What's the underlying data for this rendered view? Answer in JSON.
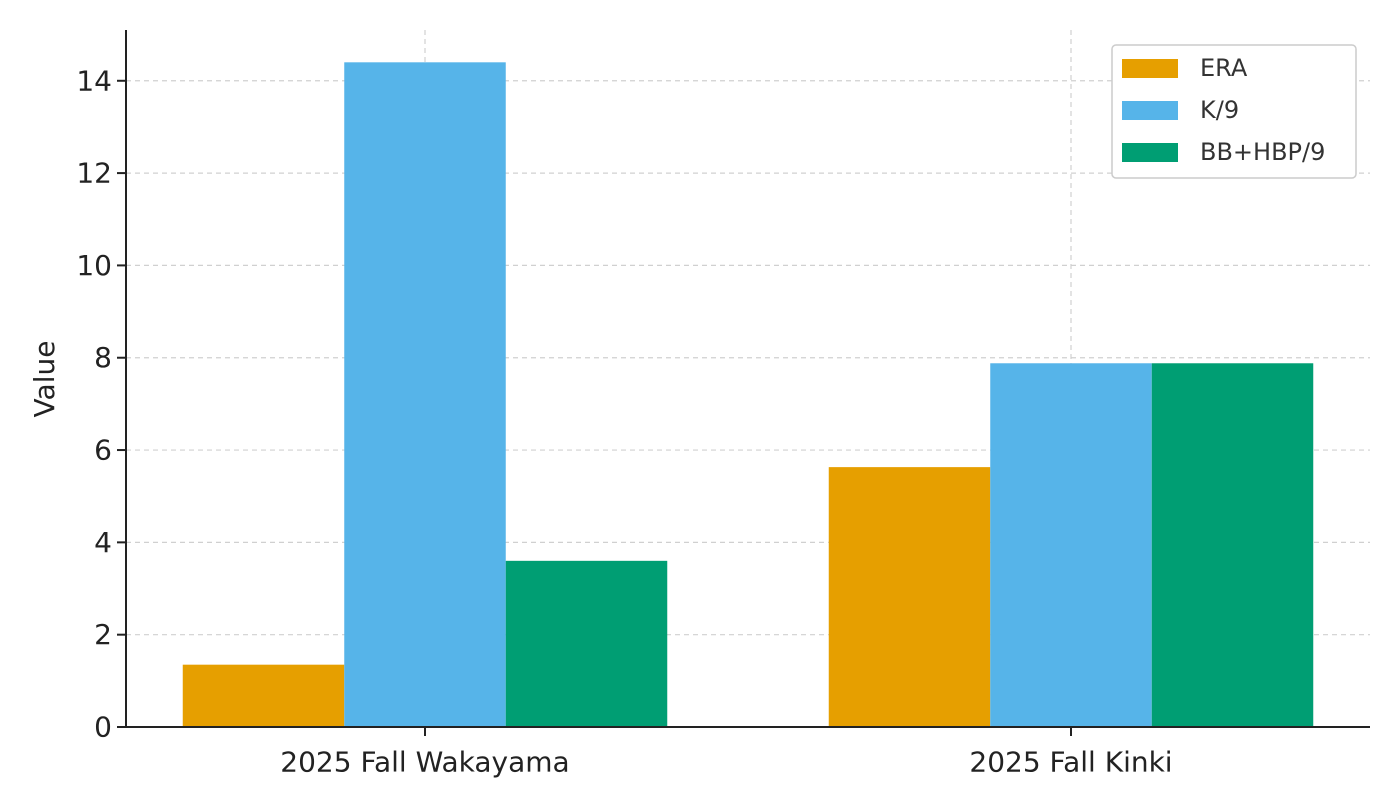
{
  "chart_data": {
    "type": "bar",
    "categories": [
      "2025 Fall Wakayama",
      "2025 Fall Kinki"
    ],
    "series": [
      {
        "name": "ERA",
        "values": [
          1.35,
          5.63
        ],
        "color": "#E69F00"
      },
      {
        "name": "K/9",
        "values": [
          14.4,
          7.88
        ],
        "color": "#56B4E9"
      },
      {
        "name": "BB+HBP/9",
        "values": [
          3.6,
          7.88
        ],
        "color": "#009E73"
      }
    ],
    "ylabel": "Value",
    "ylim": [
      0,
      15.1
    ],
    "yticks": [
      0,
      2,
      4,
      6,
      8,
      10,
      12,
      14
    ],
    "grid": true,
    "legend_position": "top-right"
  }
}
